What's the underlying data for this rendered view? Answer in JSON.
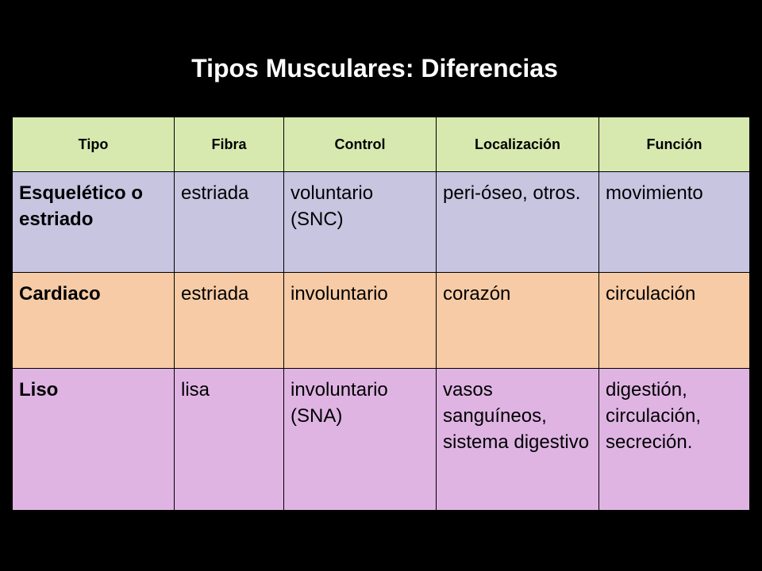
{
  "title": "Tipos Musculares: Diferencias",
  "table": {
    "headers": [
      "Tipo",
      "Fibra",
      "Control",
      "Localización",
      "Función"
    ],
    "rows": [
      {
        "tipo": "Esquelético o estriado",
        "fibra": "estriada",
        "control": "voluntario (SNC)",
        "localizacion": "peri-óseo, otros.",
        "funcion": "movimiento"
      },
      {
        "tipo": "Cardiaco",
        "fibra": "estriada",
        "control": "involuntario",
        "localizacion": "corazón",
        "funcion": "circulación"
      },
      {
        "tipo": "Liso",
        "fibra": "lisa",
        "control": "involuntario (SNA)",
        "localizacion": "vasos sanguíneos, sistema digestivo",
        "funcion": "digestión, circulación, secreción."
      }
    ]
  },
  "colors": {
    "background": "#000000",
    "header": "#d8e9b0",
    "row_esqueletico": "#c8c5e1",
    "row_cardiaco": "#f6cba5",
    "row_liso": "#dfb4e3"
  }
}
